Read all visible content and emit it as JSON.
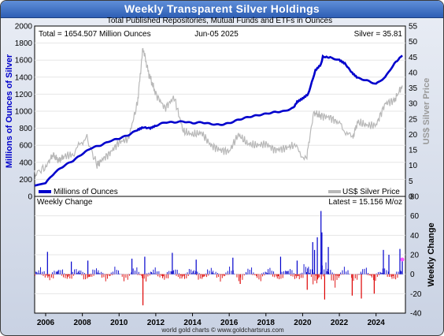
{
  "title": "Weekly Transparent Silver Holdings",
  "subtitle": "Total Published Repositories, Mutual Funds and ETFs in Ounces",
  "footer": "world gold charts © www.goldchartsrus.com",
  "colors": {
    "holdings": "#0000cc",
    "price": "#b8b8b8",
    "positive": "#0000cc",
    "negative": "#dd0000",
    "latest_dot": "#ff55ff"
  },
  "chart_data": [
    {
      "type": "line",
      "annotations": {
        "total": "Total = 1654.507 Million Ounces",
        "date": "Jun-05  2025",
        "silver": "Silver = 35.81"
      },
      "ylabel": "Millions of Ounces of Silver",
      "ylabel_right": "US$ Silver Price",
      "ylim": [
        0,
        2000
      ],
      "ylim_right": [
        0,
        55
      ],
      "yticks": [
        0,
        200,
        400,
        600,
        800,
        1000,
        1200,
        1400,
        1600,
        1800,
        2000
      ],
      "yticks_right": [
        0,
        5,
        10,
        15,
        20,
        25,
        30,
        35,
        40,
        45,
        50,
        55
      ],
      "legend": {
        "holdings": "Millions of Ounces",
        "price": "US$ Silver Price"
      },
      "series": [
        {
          "name": "Millions of Ounces",
          "x": [
            2005.4,
            2006.0,
            2006.5,
            2007.0,
            2007.5,
            2008.0,
            2008.5,
            2009.0,
            2009.5,
            2010.0,
            2010.5,
            2011.0,
            2011.3,
            2011.7,
            2012.0,
            2012.5,
            2013.0,
            2013.5,
            2014.0,
            2014.5,
            2015.0,
            2015.5,
            2016.0,
            2016.5,
            2017.0,
            2017.5,
            2018.0,
            2018.5,
            2019.0,
            2019.5,
            2019.7,
            2020.0,
            2020.3,
            2020.7,
            2021.0,
            2021.1,
            2021.5,
            2022.0,
            2022.3,
            2022.7,
            2023.0,
            2023.5,
            2024.0,
            2024.5,
            2025.0,
            2025.43
          ],
          "values": [
            130,
            160,
            280,
            360,
            420,
            500,
            570,
            600,
            650,
            680,
            720,
            780,
            810,
            800,
            830,
            870,
            870,
            880,
            860,
            870,
            850,
            840,
            860,
            900,
            930,
            950,
            970,
            990,
            1000,
            1040,
            1110,
            1150,
            1200,
            1480,
            1550,
            1640,
            1630,
            1600,
            1560,
            1450,
            1390,
            1360,
            1320,
            1400,
            1560,
            1654.507
          ]
        },
        {
          "name": "US$ Silver Price",
          "x": [
            2005.4,
            2006.0,
            2006.4,
            2006.7,
            2007.0,
            2007.5,
            2008.2,
            2008.8,
            2009.0,
            2009.5,
            2010.0,
            2010.5,
            2011.0,
            2011.3,
            2011.6,
            2012.0,
            2012.5,
            2013.0,
            2013.5,
            2014.0,
            2014.5,
            2015.0,
            2015.5,
            2016.0,
            2016.5,
            2017.0,
            2017.5,
            2018.0,
            2018.5,
            2019.0,
            2019.5,
            2020.2,
            2020.6,
            2021.0,
            2021.5,
            2022.0,
            2022.7,
            2023.0,
            2023.5,
            2024.0,
            2024.5,
            2025.0,
            2025.43
          ],
          "values": [
            7.2,
            9.5,
            13.5,
            11.5,
            13.0,
            13.5,
            19.5,
            10.0,
            11.5,
            14.0,
            17.5,
            18.5,
            30.0,
            48.0,
            40.0,
            33.0,
            28.5,
            32.0,
            21.0,
            20.0,
            20.5,
            16.5,
            15.0,
            14.5,
            20.0,
            17.0,
            16.5,
            17.0,
            15.0,
            15.5,
            16.5,
            12.0,
            27.0,
            26.0,
            25.5,
            23.5,
            18.5,
            24.0,
            23.0,
            23.0,
            30.0,
            31.0,
            35.81
          ]
        }
      ]
    },
    {
      "type": "bar",
      "title": "Weekly Change",
      "latest_label": "Latest = 15.156 M/oz",
      "ylabel_right": "Weekly Change",
      "ylim": [
        -40,
        80
      ],
      "yticks": [
        -40,
        -20,
        0,
        20,
        40,
        60,
        80
      ],
      "xlim": [
        2005.4,
        2025.6
      ],
      "xticks": [
        "2006",
        "2008",
        "2010",
        "2012",
        "2014",
        "2016",
        "2018",
        "2020",
        "2022",
        "2024"
      ],
      "spikes": [
        {
          "x": 2006.1,
          "value": 23
        },
        {
          "x": 2007.4,
          "value": 13
        },
        {
          "x": 2008.3,
          "value": 14
        },
        {
          "x": 2010.7,
          "value": 16
        },
        {
          "x": 2011.3,
          "value": -32
        },
        {
          "x": 2011.4,
          "value": 18
        },
        {
          "x": 2012.9,
          "value": 22
        },
        {
          "x": 2014.2,
          "value": 15
        },
        {
          "x": 2016.2,
          "value": 17
        },
        {
          "x": 2016.6,
          "value": -10
        },
        {
          "x": 2018.8,
          "value": 18
        },
        {
          "x": 2019.7,
          "value": 14
        },
        {
          "x": 2020.25,
          "value": -16
        },
        {
          "x": 2020.55,
          "value": 33
        },
        {
          "x": 2020.65,
          "value": 25
        },
        {
          "x": 2020.8,
          "value": 38
        },
        {
          "x": 2021.0,
          "value": 65
        },
        {
          "x": 2021.05,
          "value": 43
        },
        {
          "x": 2021.2,
          "value": -26
        },
        {
          "x": 2021.4,
          "value": 28
        },
        {
          "x": 2022.7,
          "value": -22
        },
        {
          "x": 2023.2,
          "value": -25
        },
        {
          "x": 2023.9,
          "value": -20
        },
        {
          "x": 2024.4,
          "value": 25
        },
        {
          "x": 2024.7,
          "value": 20
        },
        {
          "x": 2025.3,
          "value": 26
        },
        {
          "x": 2025.43,
          "value": 15.156
        }
      ]
    }
  ]
}
